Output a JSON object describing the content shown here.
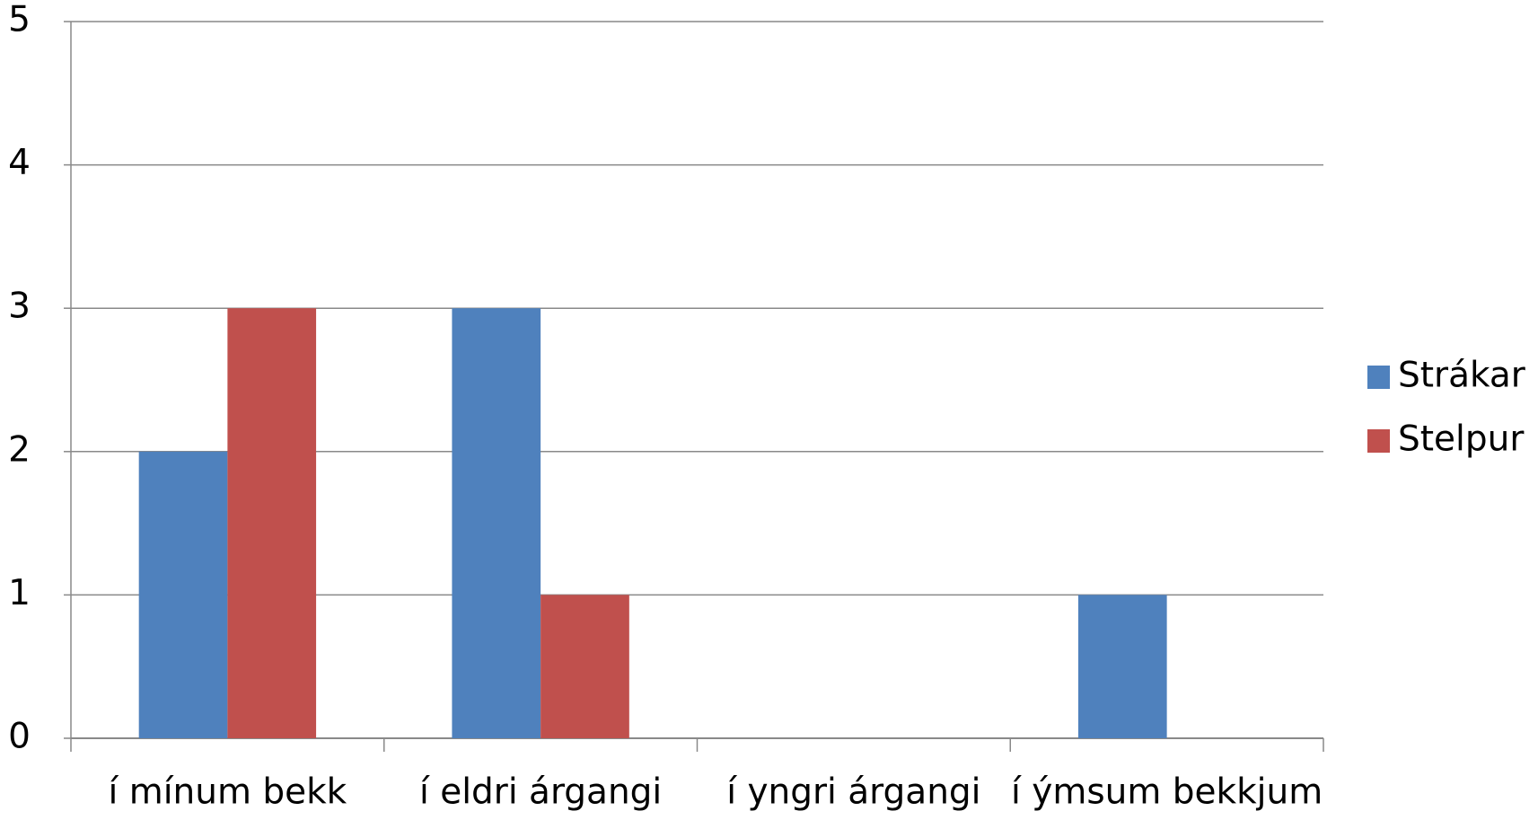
{
  "chart_data": {
    "type": "bar",
    "categories": [
      "í mínum bekk",
      "í eldri árgangi",
      "í yngri árgangi",
      "í ýmsum bekkjum"
    ],
    "series": [
      {
        "name": "Strákar",
        "color": "#4f81bd",
        "values": [
          2,
          3,
          0,
          1
        ]
      },
      {
        "name": "Stelpur",
        "color": "#c0504d",
        "values": [
          3,
          1,
          0,
          0
        ]
      }
    ],
    "ylim": [
      0,
      5
    ],
    "yticks": [
      0,
      1,
      2,
      3,
      4,
      5
    ],
    "grid": true,
    "legend": "right"
  }
}
